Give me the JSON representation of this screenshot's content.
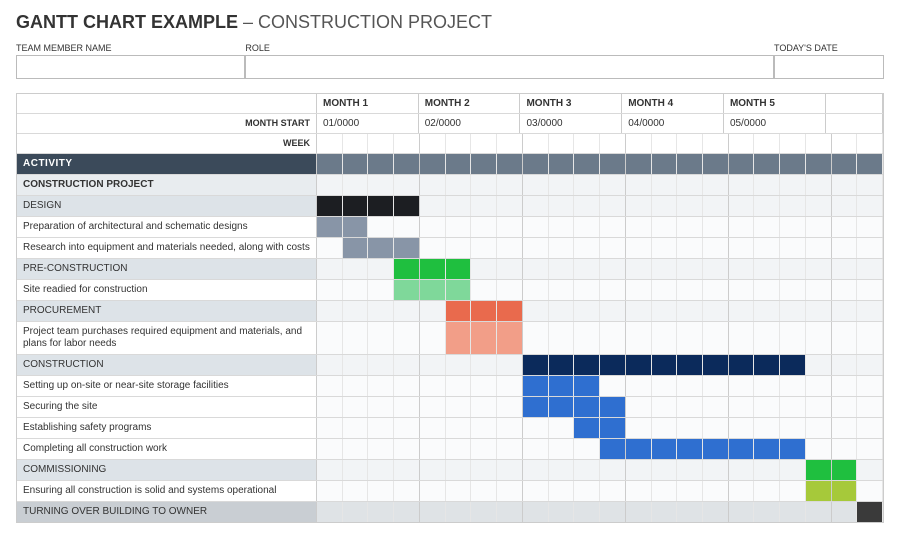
{
  "title_bold": "GANTT CHART EXAMPLE",
  "title_rest": " – CONSTRUCTION PROJECT",
  "meta": {
    "name_label": "TEAM MEMBER NAME",
    "role_label": "ROLE",
    "date_label": "TODAY'S DATE",
    "name_value": "",
    "role_value": "",
    "date_value": ""
  },
  "header": {
    "month_start_label": "MONTH START",
    "week_label": "WEEK",
    "activity_label": "ACTIVITY",
    "months": [
      "MONTH 1",
      "MONTH 2",
      "MONTH 3",
      "MONTH 4",
      "MONTH 5",
      ""
    ],
    "dates": [
      "01/0000",
      "02/0000",
      "03/0000",
      "04/0000",
      "05/0000",
      ""
    ]
  },
  "layout": {
    "total_weeks": 22,
    "month_spans": [
      4,
      4,
      4,
      4,
      4,
      2
    ]
  },
  "colors": {
    "activity_hdr_bg": "#3b4a5a",
    "activity_hdr_cells": "#6b7a8a",
    "design_phase": "#1c1e22",
    "design_task": "#8895a7",
    "precon_phase": "#1fbf3f",
    "precon_task": "#7fd89a",
    "procure_phase": "#e96a4d",
    "procure_task": "#f29e88",
    "construct_phase": "#0b2a5b",
    "construct_task": "#2f6fd0",
    "commission_phase": "#1fbf3f",
    "commission_task": "#a6c93a",
    "turnover_bar": "#3a3a3a"
  },
  "rows": [
    {
      "kind": "section",
      "label": "CONSTRUCTION PROJECT",
      "bar": null
    },
    {
      "kind": "phase",
      "label": "DESIGN",
      "bar": {
        "start": 0,
        "end": 4,
        "colorKey": "design_phase"
      }
    },
    {
      "kind": "task",
      "label": "Preparation of architectural and schematic designs",
      "bar": {
        "start": 0,
        "end": 2,
        "colorKey": "design_task"
      }
    },
    {
      "kind": "task",
      "label": "Research into equipment and materials needed, along with costs",
      "bar": {
        "start": 1,
        "end": 4,
        "colorKey": "design_task"
      }
    },
    {
      "kind": "phase",
      "label": "PRE-CONSTRUCTION",
      "bar": {
        "start": 3,
        "end": 6,
        "colorKey": "precon_phase"
      }
    },
    {
      "kind": "task",
      "label": "Site readied for construction",
      "bar": {
        "start": 3,
        "end": 6,
        "colorKey": "precon_task"
      }
    },
    {
      "kind": "phase",
      "label": "PROCUREMENT",
      "bar": {
        "start": 5,
        "end": 8,
        "colorKey": "procure_phase"
      }
    },
    {
      "kind": "task",
      "label": "Project team purchases required equipment and materials, and plans for labor needs",
      "bar": {
        "start": 5,
        "end": 8,
        "colorKey": "procure_task"
      }
    },
    {
      "kind": "phase",
      "label": "CONSTRUCTION",
      "bar": {
        "start": 8,
        "end": 19,
        "colorKey": "construct_phase"
      }
    },
    {
      "kind": "task",
      "label": "Setting up on-site or near-site storage facilities",
      "bar": {
        "start": 8,
        "end": 11,
        "colorKey": "construct_task"
      }
    },
    {
      "kind": "task",
      "label": "Securing the site",
      "bar": {
        "start": 8,
        "end": 12,
        "colorKey": "construct_task"
      }
    },
    {
      "kind": "task",
      "label": "Establishing safety programs",
      "bar": {
        "start": 10,
        "end": 12,
        "colorKey": "construct_task"
      }
    },
    {
      "kind": "task",
      "label": "Completing all construction work",
      "bar": {
        "start": 11,
        "end": 19,
        "colorKey": "construct_task"
      }
    },
    {
      "kind": "phase",
      "label": "COMMISSIONING",
      "bar": {
        "start": 19,
        "end": 21,
        "colorKey": "commission_phase"
      }
    },
    {
      "kind": "task",
      "label": "Ensuring all construction is solid and systems operational",
      "bar": {
        "start": 19,
        "end": 21,
        "colorKey": "commission_task"
      }
    },
    {
      "kind": "turnover",
      "label": "TURNING OVER BUILDING TO OWNER",
      "bar": {
        "start": 21,
        "end": 22,
        "colorKey": "turnover_bar"
      }
    }
  ]
}
